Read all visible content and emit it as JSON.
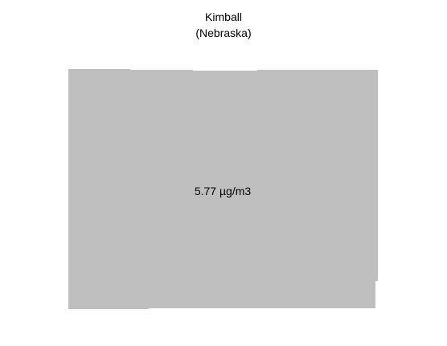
{
  "map": {
    "title": "Kimball",
    "subtitle": "(Nebraska)",
    "region_name": "Kimball",
    "value_label": "5.77 µg/m3",
    "value": 5.77,
    "unit": "µg/m3",
    "fill_color": "#bfbfbf",
    "background_color": "#ffffff"
  }
}
